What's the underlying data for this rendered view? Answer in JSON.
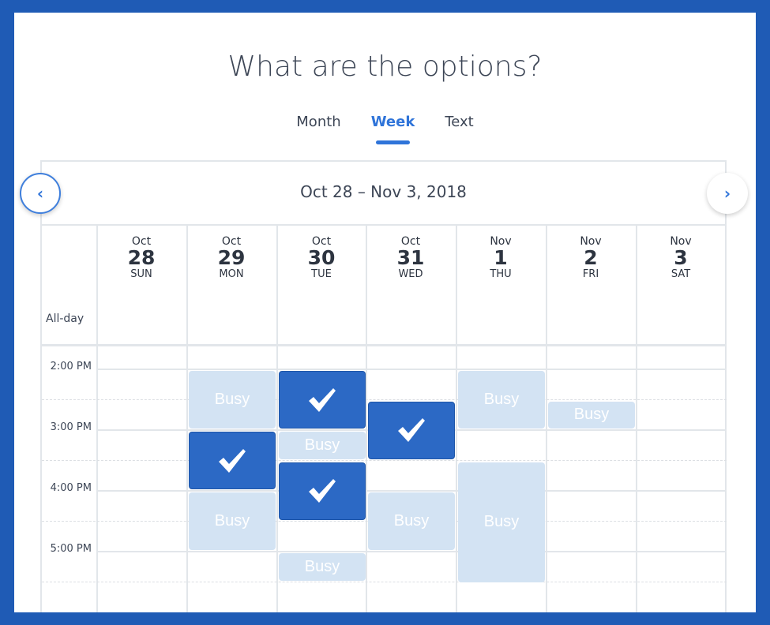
{
  "title": "What are the options?",
  "tabs": [
    {
      "label": "Month",
      "active": false
    },
    {
      "label": "Week",
      "active": true
    },
    {
      "label": "Text",
      "active": false
    }
  ],
  "range": "Oct 28 – Nov 3, 2018",
  "nav": {
    "prev_icon": "chevron-left-icon",
    "next_icon": "chevron-right-icon"
  },
  "allday_label": "All-day",
  "days": [
    {
      "month": "Oct",
      "day": "28",
      "weekday": "SUN"
    },
    {
      "month": "Oct",
      "day": "29",
      "weekday": "MON"
    },
    {
      "month": "Oct",
      "day": "30",
      "weekday": "TUE"
    },
    {
      "month": "Oct",
      "day": "31",
      "weekday": "WED"
    },
    {
      "month": "Nov",
      "day": "1",
      "weekday": "THU"
    },
    {
      "month": "Nov",
      "day": "2",
      "weekday": "FRI"
    },
    {
      "month": "Nov",
      "day": "3",
      "weekday": "SAT"
    }
  ],
  "times": [
    "2:00 PM",
    "3:00 PM",
    "4:00 PM",
    "5:00 PM"
  ],
  "busy_label": "Busy",
  "colors": {
    "accent": "#2f74d9",
    "selected": "#2c69c5",
    "busy": "#d3e3f3",
    "border": "#1f5bb5"
  },
  "events": [
    {
      "day": 1,
      "start": 14,
      "end": 15,
      "type": "busy"
    },
    {
      "day": 1,
      "start": 15,
      "end": 16,
      "type": "selected"
    },
    {
      "day": 1,
      "start": 16,
      "end": 17,
      "type": "busy"
    },
    {
      "day": 2,
      "start": 14,
      "end": 15,
      "type": "selected"
    },
    {
      "day": 2,
      "start": 15,
      "end": 15.5,
      "type": "busy"
    },
    {
      "day": 2,
      "start": 15.5,
      "end": 16.5,
      "type": "selected"
    },
    {
      "day": 2,
      "start": 17,
      "end": 17.5,
      "type": "busy"
    },
    {
      "day": 3,
      "start": 14.5,
      "end": 15.5,
      "type": "selected"
    },
    {
      "day": 3,
      "start": 16,
      "end": 17,
      "type": "busy"
    },
    {
      "day": 4,
      "start": 14,
      "end": 15,
      "type": "busy"
    },
    {
      "day": 4,
      "start": 15.5,
      "end": 18,
      "type": "busy"
    },
    {
      "day": 5,
      "start": 14.5,
      "end": 15,
      "type": "busy"
    }
  ]
}
